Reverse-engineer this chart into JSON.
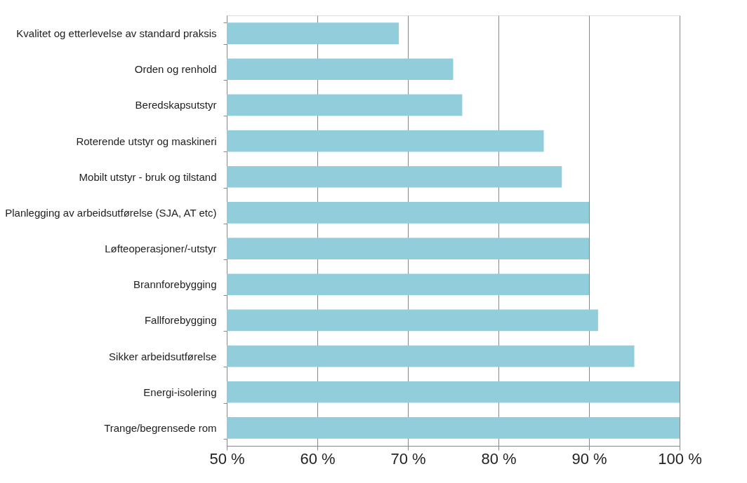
{
  "chart_data": {
    "type": "bar",
    "orientation": "horizontal",
    "categories": [
      "Kvalitet og etterlevelse av standard praksis",
      "Orden og renhold",
      "Beredskapsutstyr",
      "Roterende utstyr og maskineri",
      "Mobilt utstyr - bruk og tilstand",
      "Planlegging av arbeidsutførelse (SJA, AT etc)",
      "Løfteoperasjoner/-utstyr",
      "Brannforebygging",
      "Fallforebygging",
      "Sikker arbeidsutførelse",
      "Energi-isolering",
      "Trange/begrensede rom"
    ],
    "values": [
      69,
      75,
      76,
      85,
      87,
      90,
      90,
      90,
      91,
      95,
      100,
      100
    ],
    "color": "#92cddc",
    "xlim": [
      50,
      100
    ],
    "xticks": [
      {
        "value": 50,
        "label": "50 %"
      },
      {
        "value": 60,
        "label": "60 %"
      },
      {
        "value": 70,
        "label": "70 %"
      },
      {
        "value": 80,
        "label": "80 %"
      },
      {
        "value": 90,
        "label": "90 %"
      },
      {
        "value": 100,
        "label": "100 %"
      }
    ],
    "grid": "x"
  }
}
